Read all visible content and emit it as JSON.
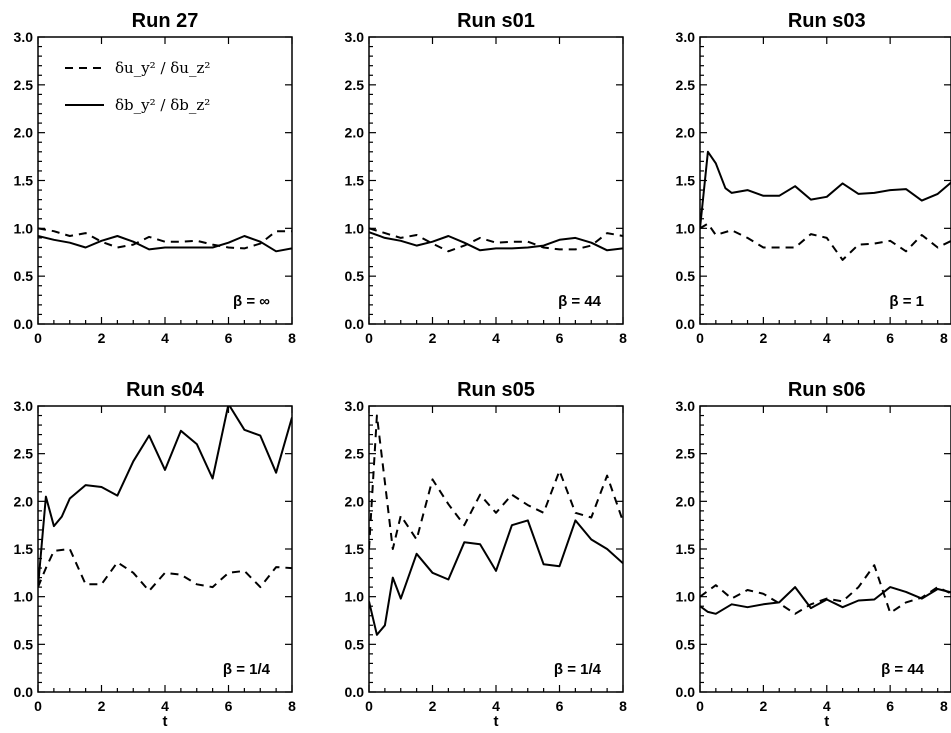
{
  "chart_data": [
    {
      "type": "line",
      "title": "Run 27",
      "xlabel": "",
      "annotation": "β = ∞",
      "xlim": [
        0,
        8
      ],
      "ylim": [
        0,
        3
      ],
      "xticks": [
        "0",
        "2",
        "4",
        "6",
        "8"
      ],
      "yticks": [
        "0.0",
        "0.5",
        "1.0",
        "1.5",
        "2.0",
        "2.5",
        "3.0"
      ],
      "legend": [
        {
          "label": "δu_y² / δu_z²",
          "style": "dashed"
        },
        {
          "label": "δb_y² / δb_z²",
          "style": "solid"
        }
      ],
      "series": [
        {
          "style": "dashed",
          "x": [
            0,
            0.5,
            1,
            1.5,
            2,
            2.5,
            3,
            3.5,
            4,
            4.5,
            5,
            5.5,
            6,
            6.5,
            7,
            7.5,
            8
          ],
          "y": [
            1.0,
            0.97,
            0.92,
            0.95,
            0.86,
            0.8,
            0.83,
            0.91,
            0.86,
            0.86,
            0.87,
            0.83,
            0.8,
            0.79,
            0.84,
            0.97,
            0.97
          ]
        },
        {
          "style": "solid",
          "x": [
            0,
            0.5,
            1,
            1.5,
            2,
            2.5,
            3,
            3.5,
            4,
            4.5,
            5,
            5.5,
            6,
            6.5,
            7,
            7.5,
            8
          ],
          "y": [
            0.92,
            0.88,
            0.85,
            0.8,
            0.87,
            0.92,
            0.86,
            0.78,
            0.8,
            0.8,
            0.8,
            0.8,
            0.85,
            0.92,
            0.86,
            0.76,
            0.79
          ]
        }
      ]
    },
    {
      "type": "line",
      "title": "Run s01",
      "xlabel": "",
      "annotation": "β = 44",
      "xlim": [
        0,
        8
      ],
      "ylim": [
        0,
        3
      ],
      "xticks": [
        "0",
        "2",
        "4",
        "6",
        "8"
      ],
      "yticks": [
        "0.0",
        "0.5",
        "1.0",
        "1.5",
        "2.0",
        "2.5",
        "3.0"
      ],
      "series": [
        {
          "style": "dashed",
          "x": [
            0,
            0.5,
            1,
            1.5,
            2,
            2.5,
            3,
            3.5,
            4,
            4.5,
            5,
            5.5,
            6,
            6.5,
            7,
            7.5,
            8
          ],
          "y": [
            1.0,
            0.95,
            0.9,
            0.93,
            0.84,
            0.76,
            0.82,
            0.9,
            0.85,
            0.86,
            0.86,
            0.8,
            0.78,
            0.78,
            0.82,
            0.95,
            0.92
          ]
        },
        {
          "style": "solid",
          "x": [
            0,
            0.5,
            1,
            1.5,
            2,
            2.5,
            3,
            3.5,
            4,
            4.5,
            5,
            5.5,
            6,
            6.5,
            7,
            7.5,
            8
          ],
          "y": [
            0.96,
            0.9,
            0.87,
            0.82,
            0.86,
            0.92,
            0.85,
            0.77,
            0.79,
            0.79,
            0.8,
            0.82,
            0.88,
            0.9,
            0.85,
            0.77,
            0.79
          ]
        }
      ]
    },
    {
      "type": "line",
      "title": "Run s03",
      "xlabel": "",
      "annotation": "β = 1",
      "xlim": [
        0,
        8
      ],
      "ylim": [
        0,
        3
      ],
      "xticks": [
        "0",
        "2",
        "4",
        "6",
        "8"
      ],
      "yticks": [
        "0.0",
        "0.5",
        "1.0",
        "1.5",
        "2.0",
        "2.5",
        "3.0"
      ],
      "series": [
        {
          "style": "dashed",
          "x": [
            0,
            0.25,
            0.5,
            1,
            1.5,
            2,
            2.5,
            3,
            3.5,
            4,
            4.5,
            5,
            5.5,
            6,
            6.5,
            7,
            7.5,
            8
          ],
          "y": [
            1.0,
            1.05,
            0.93,
            0.98,
            0.9,
            0.8,
            0.8,
            0.8,
            0.94,
            0.9,
            0.67,
            0.83,
            0.84,
            0.87,
            0.76,
            0.93,
            0.8,
            0.88
          ]
        },
        {
          "style": "solid",
          "x": [
            0,
            0.25,
            0.5,
            0.8,
            1,
            1.5,
            2,
            2.5,
            3,
            3.5,
            4,
            4.5,
            5,
            5.5,
            6,
            6.5,
            7,
            7.5,
            8
          ],
          "y": [
            1.0,
            1.8,
            1.68,
            1.42,
            1.37,
            1.4,
            1.34,
            1.34,
            1.44,
            1.3,
            1.33,
            1.47,
            1.36,
            1.37,
            1.4,
            1.41,
            1.29,
            1.36,
            1.5
          ]
        }
      ]
    },
    {
      "type": "line",
      "title": "Run s04",
      "xlabel": "t",
      "annotation": "β = 1/4",
      "xlim": [
        0,
        8
      ],
      "ylim": [
        0,
        3
      ],
      "xticks": [
        "0",
        "2",
        "4",
        "6",
        "8"
      ],
      "yticks": [
        "0.0",
        "0.5",
        "1.0",
        "1.5",
        "2.0",
        "2.5",
        "3.0"
      ],
      "series": [
        {
          "style": "dashed",
          "x": [
            0,
            0.25,
            0.5,
            1,
            1.5,
            2,
            2.5,
            3,
            3.5,
            4,
            4.5,
            5,
            5.5,
            6,
            6.5,
            7,
            7.5,
            8
          ],
          "y": [
            1.1,
            1.3,
            1.48,
            1.5,
            1.13,
            1.13,
            1.36,
            1.25,
            1.06,
            1.25,
            1.23,
            1.13,
            1.1,
            1.25,
            1.27,
            1.1,
            1.31,
            1.3
          ]
        },
        {
          "style": "solid",
          "x": [
            0,
            0.25,
            0.5,
            0.75,
            1,
            1.5,
            2,
            2.5,
            3,
            3.5,
            4,
            4.5,
            5,
            5.5,
            6,
            6.5,
            7,
            7.5,
            8
          ],
          "y": [
            1.1,
            2.05,
            1.74,
            1.84,
            2.03,
            2.17,
            2.15,
            2.06,
            2.42,
            2.69,
            2.33,
            2.74,
            2.6,
            2.24,
            3.02,
            2.75,
            2.69,
            2.3,
            2.88
          ]
        }
      ]
    },
    {
      "type": "line",
      "title": "Run s05",
      "xlabel": "t",
      "annotation": "β = 1/4",
      "xlim": [
        0,
        8
      ],
      "ylim": [
        0,
        3
      ],
      "xticks": [
        "0",
        "2",
        "4",
        "6",
        "8"
      ],
      "yticks": [
        "0.0",
        "0.5",
        "1.0",
        "1.5",
        "2.0",
        "2.5",
        "3.0"
      ],
      "series": [
        {
          "style": "dashed",
          "x": [
            0,
            0.25,
            0.5,
            0.75,
            1,
            1.5,
            2,
            2.5,
            3,
            3.5,
            4,
            4.5,
            5,
            5.5,
            6,
            6.5,
            7,
            7.5,
            8
          ],
          "y": [
            1.5,
            2.9,
            2.2,
            1.5,
            1.85,
            1.6,
            2.23,
            1.97,
            1.75,
            2.07,
            1.88,
            2.07,
            1.96,
            1.88,
            2.32,
            1.88,
            1.83,
            2.27,
            1.79
          ]
        },
        {
          "style": "solid",
          "x": [
            0,
            0.25,
            0.5,
            0.75,
            1,
            1.5,
            2,
            2.5,
            3,
            3.5,
            4,
            4.5,
            5,
            5.5,
            6,
            6.5,
            7,
            7.5,
            8
          ],
          "y": [
            0.95,
            0.6,
            0.7,
            1.2,
            0.98,
            1.45,
            1.25,
            1.18,
            1.57,
            1.55,
            1.27,
            1.75,
            1.8,
            1.34,
            1.32,
            1.8,
            1.6,
            1.5,
            1.35
          ]
        }
      ]
    },
    {
      "type": "line",
      "title": "Run s06",
      "xlabel": "t",
      "annotation": "β = 44",
      "xlim": [
        0,
        8
      ],
      "ylim": [
        0,
        3
      ],
      "xticks": [
        "0",
        "2",
        "4",
        "6",
        "8"
      ],
      "yticks": [
        "0.0",
        "0.5",
        "1.0",
        "1.5",
        "2.0",
        "2.5",
        "3.0"
      ],
      "series": [
        {
          "style": "dashed",
          "x": [
            0,
            0.5,
            1,
            1.5,
            2,
            2.5,
            3,
            3.5,
            4,
            4.5,
            5,
            5.5,
            6,
            6.5,
            7,
            7.5,
            8
          ],
          "y": [
            1.0,
            1.12,
            0.98,
            1.07,
            1.03,
            0.93,
            0.82,
            0.92,
            0.98,
            0.95,
            1.1,
            1.33,
            0.83,
            0.94,
            0.99,
            1.1,
            1.02
          ]
        },
        {
          "style": "solid",
          "x": [
            0,
            0.25,
            0.5,
            1,
            1.5,
            2,
            2.5,
            3,
            3.5,
            4,
            4.5,
            5,
            5.5,
            6,
            6.5,
            7,
            7.5,
            8
          ],
          "y": [
            0.9,
            0.84,
            0.82,
            0.92,
            0.89,
            0.92,
            0.94,
            1.1,
            0.88,
            0.97,
            0.89,
            0.96,
            0.97,
            1.1,
            1.05,
            0.98,
            1.08,
            1.04
          ]
        }
      ]
    }
  ]
}
